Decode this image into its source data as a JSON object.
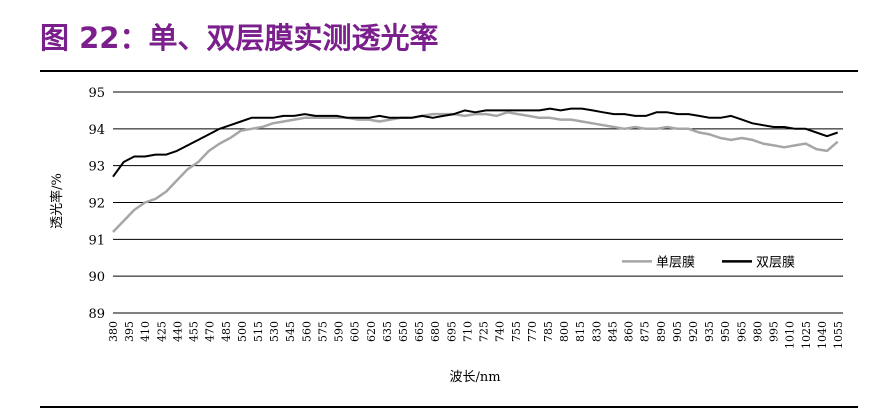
{
  "figure": {
    "title": "图 22：单、双层膜实测透光率"
  },
  "chart_data": {
    "type": "line",
    "xlabel": "波长/nm",
    "ylabel": "透光率/%",
    "ylim": [
      89,
      95
    ],
    "y_ticks": [
      89,
      90,
      91,
      92,
      93,
      94,
      95
    ],
    "grid": true,
    "legend_position": "bottom-right",
    "x_ticks": [
      "380",
      "395",
      "410",
      "425",
      "440",
      "455",
      "470",
      "485",
      "500",
      "515",
      "530",
      "545",
      "560",
      "575",
      "590",
      "605",
      "620",
      "635",
      "650",
      "665",
      "680",
      "695",
      "710",
      "725",
      "740",
      "755",
      "770",
      "785",
      "800",
      "815",
      "830",
      "845",
      "860",
      "875",
      "890",
      "905",
      "920",
      "935",
      "950",
      "965",
      "980",
      "995",
      "1010",
      "1025",
      "1040",
      "1055"
    ],
    "x": [
      380,
      390,
      400,
      410,
      420,
      430,
      440,
      450,
      460,
      470,
      480,
      490,
      500,
      510,
      520,
      530,
      540,
      550,
      560,
      570,
      580,
      590,
      600,
      610,
      620,
      630,
      640,
      650,
      660,
      670,
      680,
      690,
      700,
      710,
      720,
      730,
      740,
      750,
      760,
      770,
      780,
      790,
      800,
      810,
      820,
      830,
      840,
      850,
      860,
      870,
      880,
      890,
      900,
      910,
      920,
      930,
      940,
      950,
      960,
      970,
      980,
      990,
      1000,
      1010,
      1020,
      1030,
      1040,
      1050,
      1060
    ],
    "series": [
      {
        "name": "单层膜",
        "color": "#a6a6a6",
        "values": [
          91.2,
          91.5,
          91.8,
          92.0,
          92.1,
          92.3,
          92.6,
          92.9,
          93.1,
          93.4,
          93.6,
          93.75,
          93.95,
          94.0,
          94.05,
          94.15,
          94.2,
          94.25,
          94.3,
          94.3,
          94.3,
          94.3,
          94.3,
          94.25,
          94.25,
          94.2,
          94.25,
          94.3,
          94.3,
          94.35,
          94.4,
          94.4,
          94.4,
          94.35,
          94.4,
          94.4,
          94.35,
          94.45,
          94.4,
          94.35,
          94.3,
          94.3,
          94.25,
          94.25,
          94.2,
          94.15,
          94.1,
          94.05,
          94.0,
          94.05,
          94.0,
          94.0,
          94.05,
          94.0,
          94.0,
          93.9,
          93.85,
          93.75,
          93.7,
          93.75,
          93.7,
          93.6,
          93.55,
          93.5,
          93.55,
          93.6,
          93.45,
          93.4,
          93.65
        ]
      },
      {
        "name": "双层膜",
        "color": "#000000",
        "values": [
          92.7,
          93.1,
          93.25,
          93.25,
          93.3,
          93.3,
          93.4,
          93.55,
          93.7,
          93.85,
          94.0,
          94.1,
          94.2,
          94.3,
          94.3,
          94.3,
          94.35,
          94.35,
          94.4,
          94.35,
          94.35,
          94.35,
          94.3,
          94.3,
          94.3,
          94.35,
          94.3,
          94.3,
          94.3,
          94.35,
          94.3,
          94.35,
          94.4,
          94.5,
          94.45,
          94.5,
          94.5,
          94.5,
          94.5,
          94.5,
          94.5,
          94.55,
          94.5,
          94.55,
          94.55,
          94.5,
          94.45,
          94.4,
          94.4,
          94.35,
          94.35,
          94.45,
          94.45,
          94.4,
          94.4,
          94.35,
          94.3,
          94.3,
          94.35,
          94.25,
          94.15,
          94.1,
          94.05,
          94.05,
          94.0,
          94.0,
          93.9,
          93.8,
          93.9
        ]
      }
    ]
  }
}
